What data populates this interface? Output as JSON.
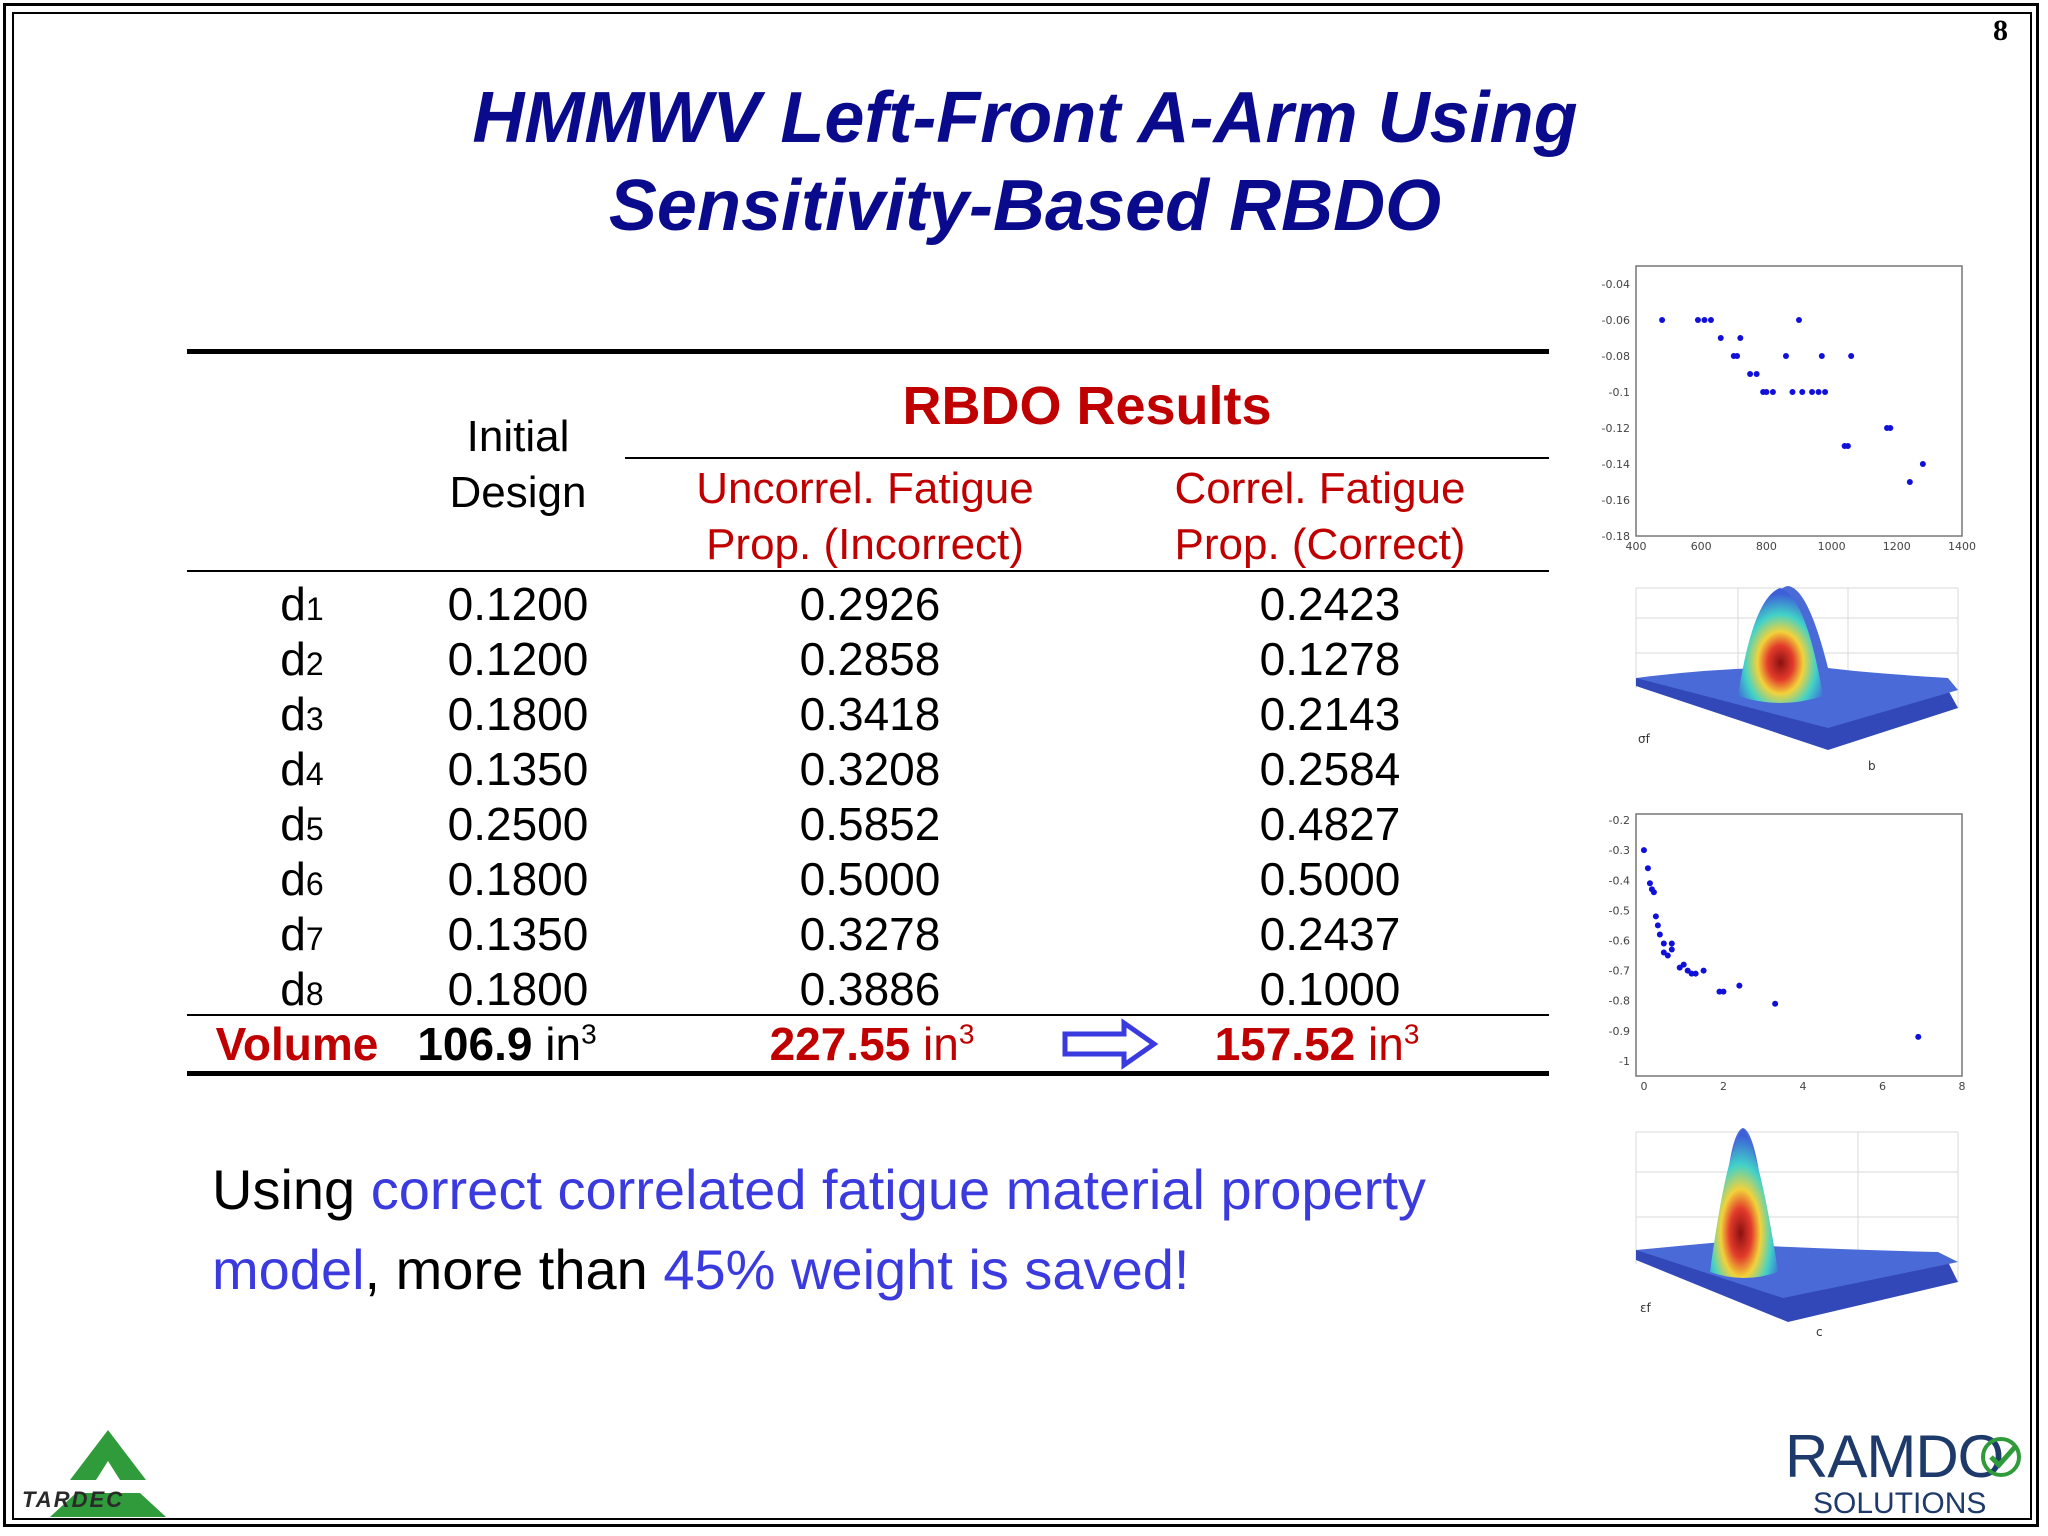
{
  "page_number": "8",
  "title": {
    "line1": "HMMWV Left-Front A-Arm Using",
    "line2": "Sensitivity-Based RBDO"
  },
  "table": {
    "initial_header": [
      "Initial",
      "Design"
    ],
    "rbdo_header": "RBDO Results",
    "uncorrel_header": [
      "Uncorrel. Fatigue",
      "Prop. (Incorrect)"
    ],
    "correl_header": [
      "Correl. Fatigue",
      "Prop. (Correct)"
    ],
    "rows": [
      {
        "var": "d",
        "sub": "1",
        "initial": "0.1200",
        "uncorrel": "0.2926",
        "correl": "0.2423"
      },
      {
        "var": "d",
        "sub": "2",
        "initial": "0.1200",
        "uncorrel": "0.2858",
        "correl": "0.1278"
      },
      {
        "var": "d",
        "sub": "3",
        "initial": "0.1800",
        "uncorrel": "0.3418",
        "correl": "0.2143"
      },
      {
        "var": "d",
        "sub": "4",
        "initial": "0.1350",
        "uncorrel": "0.3208",
        "correl": "0.2584"
      },
      {
        "var": "d",
        "sub": "5",
        "initial": "0.2500",
        "uncorrel": "0.5852",
        "correl": "0.4827"
      },
      {
        "var": "d",
        "sub": "6",
        "initial": "0.1800",
        "uncorrel": "0.5000",
        "correl": "0.5000"
      },
      {
        "var": "d",
        "sub": "7",
        "initial": "0.1350",
        "uncorrel": "0.3278",
        "correl": "0.2437"
      },
      {
        "var": "d",
        "sub": "8",
        "initial": "0.1800",
        "uncorrel": "0.3886",
        "correl": "0.1000"
      }
    ],
    "volume": {
      "label": "Volume",
      "initial": "106.9",
      "uncorrel": "227.55",
      "correl": "157.52",
      "unit": "in",
      "unit_exp": "3"
    }
  },
  "statement": {
    "part1": "Using ",
    "part2": "correct correlated fatigue material property",
    "part3": "model",
    "part4": ", more than ",
    "part5": "45% weight is saved!"
  },
  "scatter1": {
    "x_ticks": [
      "400",
      "600",
      "800",
      "1000",
      "1200",
      "1400"
    ],
    "y_ticks": [
      "-0.04",
      "-0.06",
      "-0.08",
      "-0.1",
      "-0.12",
      "-0.14",
      "-0.16",
      "-0.18"
    ],
    "points": [
      [
        480,
        -0.06
      ],
      [
        590,
        -0.06
      ],
      [
        610,
        -0.06
      ],
      [
        630,
        -0.06
      ],
      [
        660,
        -0.07
      ],
      [
        700,
        -0.08
      ],
      [
        710,
        -0.08
      ],
      [
        720,
        -0.07
      ],
      [
        750,
        -0.09
      ],
      [
        770,
        -0.09
      ],
      [
        790,
        -0.1
      ],
      [
        800,
        -0.1
      ],
      [
        820,
        -0.1
      ],
      [
        860,
        -0.08
      ],
      [
        880,
        -0.1
      ],
      [
        900,
        -0.06
      ],
      [
        910,
        -0.1
      ],
      [
        940,
        -0.1
      ],
      [
        960,
        -0.1
      ],
      [
        970,
        -0.08
      ],
      [
        980,
        -0.1
      ],
      [
        1040,
        -0.13
      ],
      [
        1050,
        -0.13
      ],
      [
        1060,
        -0.08
      ],
      [
        1170,
        -0.12
      ],
      [
        1180,
        -0.12
      ],
      [
        1240,
        -0.15
      ],
      [
        1280,
        -0.14
      ]
    ]
  },
  "surface1": {
    "x_axis": "b",
    "y_axis": "σf"
  },
  "scatter2": {
    "x_ticks": [
      "0",
      "2",
      "4",
      "6",
      "8"
    ],
    "y_ticks": [
      "-0.2",
      "-0.3",
      "-0.4",
      "-0.5",
      "-0.6",
      "-0.7",
      "-0.8",
      "-0.9",
      "-1"
    ],
    "points": [
      [
        0.0,
        -0.3
      ],
      [
        0.1,
        -0.36
      ],
      [
        0.15,
        -0.41
      ],
      [
        0.2,
        -0.43
      ],
      [
        0.25,
        -0.44
      ],
      [
        0.3,
        -0.52
      ],
      [
        0.35,
        -0.55
      ],
      [
        0.4,
        -0.58
      ],
      [
        0.5,
        -0.61
      ],
      [
        0.5,
        -0.64
      ],
      [
        0.6,
        -0.65
      ],
      [
        0.7,
        -0.61
      ],
      [
        0.7,
        -0.63
      ],
      [
        0.9,
        -0.69
      ],
      [
        1.0,
        -0.68
      ],
      [
        1.1,
        -0.7
      ],
      [
        1.2,
        -0.71
      ],
      [
        1.3,
        -0.71
      ],
      [
        1.5,
        -0.7
      ],
      [
        1.9,
        -0.77
      ],
      [
        2.0,
        -0.77
      ],
      [
        2.4,
        -0.75
      ],
      [
        3.3,
        -0.81
      ],
      [
        6.9,
        -0.92
      ]
    ]
  },
  "surface2": {
    "x_axis": "c",
    "y_axis": "εf"
  },
  "logos": {
    "left": "TARDEC",
    "right_main": "RAMDO",
    "right_sub": "SOLUTIONS"
  },
  "colors": {
    "title": "#0a0a8c",
    "accent_red": "#c00000",
    "accent_blue": "#3a3adf",
    "tardec_green": "#2f9b3a",
    "ramdo_navy": "#1e3a6b"
  }
}
